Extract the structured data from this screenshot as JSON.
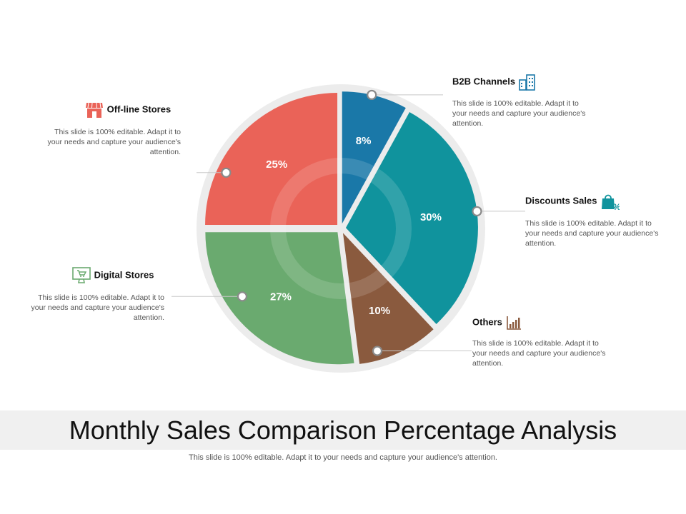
{
  "chart_data": {
    "type": "pie",
    "title": "Monthly Sales Comparison Percentage Analysis",
    "subtitle": "This slide is 100% editable. Adapt it to your needs and capture your audience's attention.",
    "slices": [
      {
        "name": "B2B Channels",
        "value": 8,
        "label": "8%",
        "color": "#1a78a8",
        "icon": "buildings-icon"
      },
      {
        "name": "Discounts Sales",
        "value": 30,
        "label": "30%",
        "color": "#10939d",
        "icon": "shopping-bag-percent-icon"
      },
      {
        "name": "Others",
        "value": 10,
        "label": "10%",
        "color": "#8a5a3e",
        "icon": "bar-chart-icon"
      },
      {
        "name": "Digital Stores",
        "value": 27,
        "label": "27%",
        "color": "#6aaa6f",
        "icon": "monitor-cart-icon"
      },
      {
        "name": "Off-line Stores",
        "value": 25,
        "label": "25%",
        "color": "#ea6358",
        "icon": "storefront-icon"
      }
    ]
  },
  "callouts": {
    "b2b": {
      "title": "B2B Channels",
      "desc": "This slide is 100% editable. Adapt it to your needs and capture your audience's attention."
    },
    "discounts": {
      "title": "Discounts Sales",
      "desc": "This slide is 100% editable. Adapt it to your needs and capture your audience's attention."
    },
    "others": {
      "title": "Others",
      "desc": "This slide is 100% editable. Adapt it to your needs and capture your audience's attention."
    },
    "digital": {
      "title": "Digital Stores",
      "desc": "This slide is 100% editable. Adapt it to your needs and capture your audience's attention."
    },
    "offline": {
      "title": "Off-line Stores",
      "desc": "This slide is 100% editable. Adapt it to your needs and capture your audience's attention."
    }
  }
}
